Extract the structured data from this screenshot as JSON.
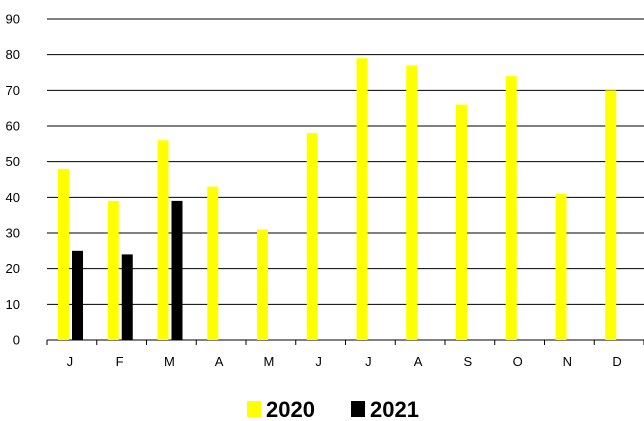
{
  "chart_data": {
    "type": "bar",
    "categories": [
      "J",
      "F",
      "M",
      "A",
      "M",
      "J",
      "J",
      "A",
      "S",
      "O",
      "N",
      "D"
    ],
    "series": [
      {
        "name": "2020",
        "color": "#ffff00",
        "values": [
          48,
          39,
          56,
          43,
          31,
          58,
          79,
          77,
          66,
          74,
          41,
          70
        ]
      },
      {
        "name": "2021",
        "color": "#000000",
        "values": [
          25,
          24,
          39,
          null,
          null,
          null,
          null,
          null,
          null,
          null,
          null,
          null
        ]
      }
    ],
    "yticks": [
      0,
      10,
      20,
      30,
      40,
      50,
      60,
      70,
      80,
      90
    ],
    "ylim": [
      0,
      90
    ],
    "grid": true,
    "legend_position": "bottom-center",
    "title": "",
    "xlabel": "",
    "ylabel": ""
  }
}
